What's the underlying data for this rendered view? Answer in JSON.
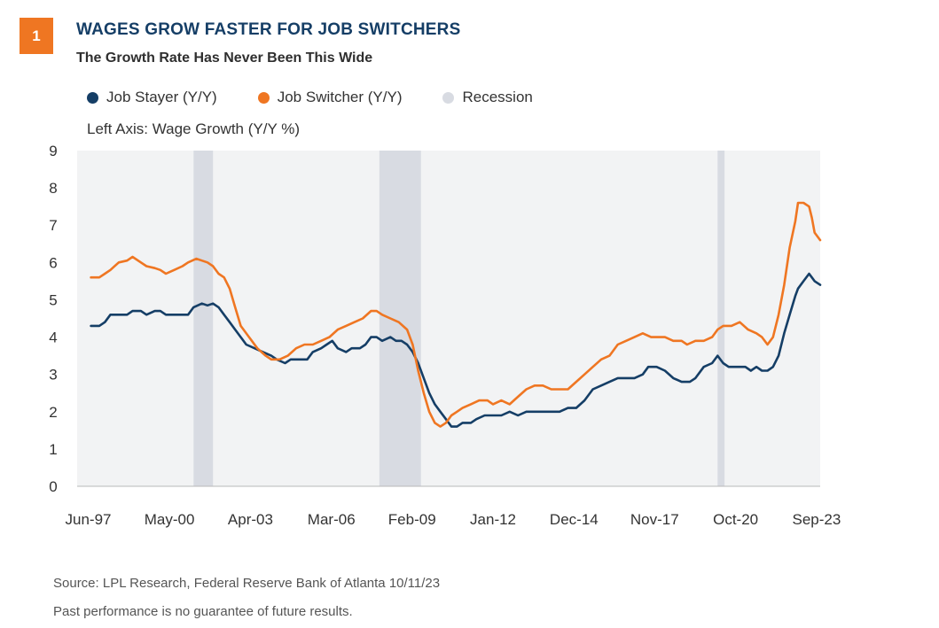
{
  "header": {
    "badge": "1",
    "title": "WAGES GROW FASTER FOR JOB SWITCHERS",
    "subtitle": "The Growth Rate Has Never Been This Wide"
  },
  "legend": {
    "stayer": "Job Stayer (Y/Y)",
    "switcher": "Job Switcher (Y/Y)",
    "recession": "Recession"
  },
  "axis_note": "Left Axis: Wage Growth (Y/Y %)",
  "footer": {
    "source": "Source: LPL Research, Federal Reserve Bank of Atlanta  10/11/23",
    "disclaimer": "Past performance is no guarantee of future results."
  },
  "colors": {
    "stayer": "#153e66",
    "switcher": "#ef7622",
    "recession": "#d8dbe2",
    "plot_bg": "#f2f3f4",
    "badge": "#ef7622",
    "title": "#153e66"
  },
  "chart_data": {
    "type": "line",
    "title": "WAGES GROW FASTER FOR JOB SWITCHERS",
    "subtitle": "The Growth Rate Has Never Been This Wide",
    "ylabel": "Left Axis: Wage Growth (Y/Y %)",
    "ylim": [
      0,
      9
    ],
    "xlim": [
      1997.0,
      2023.8
    ],
    "y_ticks": [
      0,
      1,
      2,
      3,
      4,
      5,
      6,
      7,
      8,
      9
    ],
    "x_ticks": [
      {
        "label": "Jun-97",
        "x": 1997.4
      },
      {
        "label": "May-00",
        "x": 2000.33
      },
      {
        "label": "Apr-03",
        "x": 2003.25
      },
      {
        "label": "Mar-06",
        "x": 2006.17
      },
      {
        "label": "Feb-09",
        "x": 2009.08
      },
      {
        "label": "Jan-12",
        "x": 2012.0
      },
      {
        "label": "Dec-14",
        "x": 2014.92
      },
      {
        "label": "Nov-17",
        "x": 2017.83
      },
      {
        "label": "Oct-20",
        "x": 2020.75
      },
      {
        "label": "Sep-23",
        "x": 2023.67
      }
    ],
    "grid": false,
    "legend_position": "top-left",
    "recessions": [
      {
        "start": 2001.2,
        "end": 2001.9
      },
      {
        "start": 2007.9,
        "end": 2009.4
      },
      {
        "start": 2020.1,
        "end": 2020.35
      }
    ],
    "series": [
      {
        "name": "Job Stayer (Y/Y)",
        "points": [
          [
            1997.5,
            4.3
          ],
          [
            1997.8,
            4.3
          ],
          [
            1998.0,
            4.4
          ],
          [
            1998.2,
            4.6
          ],
          [
            1998.5,
            4.6
          ],
          [
            1998.8,
            4.6
          ],
          [
            1999.0,
            4.7
          ],
          [
            1999.3,
            4.7
          ],
          [
            1999.5,
            4.6
          ],
          [
            1999.8,
            4.7
          ],
          [
            2000.0,
            4.7
          ],
          [
            2000.2,
            4.6
          ],
          [
            2000.5,
            4.6
          ],
          [
            2000.8,
            4.6
          ],
          [
            2001.0,
            4.6
          ],
          [
            2001.2,
            4.8
          ],
          [
            2001.5,
            4.9
          ],
          [
            2001.7,
            4.85
          ],
          [
            2001.9,
            4.9
          ],
          [
            2002.1,
            4.8
          ],
          [
            2002.3,
            4.6
          ],
          [
            2002.5,
            4.4
          ],
          [
            2002.7,
            4.2
          ],
          [
            2002.9,
            4.0
          ],
          [
            2003.1,
            3.8
          ],
          [
            2003.4,
            3.7
          ],
          [
            2003.7,
            3.6
          ],
          [
            2004.0,
            3.5
          ],
          [
            2004.2,
            3.4
          ],
          [
            2004.5,
            3.3
          ],
          [
            2004.7,
            3.4
          ],
          [
            2005.0,
            3.4
          ],
          [
            2005.3,
            3.4
          ],
          [
            2005.5,
            3.6
          ],
          [
            2005.8,
            3.7
          ],
          [
            2006.0,
            3.8
          ],
          [
            2006.2,
            3.9
          ],
          [
            2006.4,
            3.7
          ],
          [
            2006.7,
            3.6
          ],
          [
            2006.9,
            3.7
          ],
          [
            2007.2,
            3.7
          ],
          [
            2007.4,
            3.8
          ],
          [
            2007.6,
            4.0
          ],
          [
            2007.8,
            4.0
          ],
          [
            2008.0,
            3.9
          ],
          [
            2008.3,
            4.0
          ],
          [
            2008.5,
            3.9
          ],
          [
            2008.7,
            3.9
          ],
          [
            2008.9,
            3.8
          ],
          [
            2009.1,
            3.6
          ],
          [
            2009.3,
            3.3
          ],
          [
            2009.5,
            2.9
          ],
          [
            2009.7,
            2.5
          ],
          [
            2009.9,
            2.2
          ],
          [
            2010.1,
            2.0
          ],
          [
            2010.3,
            1.8
          ],
          [
            2010.5,
            1.6
          ],
          [
            2010.7,
            1.6
          ],
          [
            2010.9,
            1.7
          ],
          [
            2011.2,
            1.7
          ],
          [
            2011.4,
            1.8
          ],
          [
            2011.7,
            1.9
          ],
          [
            2012.0,
            1.9
          ],
          [
            2012.3,
            1.9
          ],
          [
            2012.6,
            2.0
          ],
          [
            2012.9,
            1.9
          ],
          [
            2013.2,
            2.0
          ],
          [
            2013.5,
            2.0
          ],
          [
            2013.8,
            2.0
          ],
          [
            2014.1,
            2.0
          ],
          [
            2014.4,
            2.0
          ],
          [
            2014.7,
            2.1
          ],
          [
            2015.0,
            2.1
          ],
          [
            2015.3,
            2.3
          ],
          [
            2015.6,
            2.6
          ],
          [
            2015.9,
            2.7
          ],
          [
            2016.2,
            2.8
          ],
          [
            2016.5,
            2.9
          ],
          [
            2016.8,
            2.9
          ],
          [
            2017.1,
            2.9
          ],
          [
            2017.4,
            3.0
          ],
          [
            2017.6,
            3.2
          ],
          [
            2017.9,
            3.2
          ],
          [
            2018.2,
            3.1
          ],
          [
            2018.5,
            2.9
          ],
          [
            2018.8,
            2.8
          ],
          [
            2019.1,
            2.8
          ],
          [
            2019.3,
            2.9
          ],
          [
            2019.6,
            3.2
          ],
          [
            2019.9,
            3.3
          ],
          [
            2020.1,
            3.5
          ],
          [
            2020.3,
            3.3
          ],
          [
            2020.5,
            3.2
          ],
          [
            2020.8,
            3.2
          ],
          [
            2021.1,
            3.2
          ],
          [
            2021.3,
            3.1
          ],
          [
            2021.5,
            3.2
          ],
          [
            2021.7,
            3.1
          ],
          [
            2021.9,
            3.1
          ],
          [
            2022.1,
            3.2
          ],
          [
            2022.3,
            3.5
          ],
          [
            2022.5,
            4.1
          ],
          [
            2022.7,
            4.6
          ],
          [
            2022.9,
            5.1
          ],
          [
            2023.0,
            5.3
          ],
          [
            2023.2,
            5.5
          ],
          [
            2023.4,
            5.7
          ],
          [
            2023.5,
            5.6
          ],
          [
            2023.6,
            5.5
          ],
          [
            2023.8,
            5.4
          ]
        ]
      },
      {
        "name": "Job Switcher (Y/Y)",
        "points": [
          [
            1997.5,
            5.6
          ],
          [
            1997.8,
            5.6
          ],
          [
            1998.0,
            5.7
          ],
          [
            1998.2,
            5.8
          ],
          [
            1998.5,
            6.0
          ],
          [
            1998.8,
            6.05
          ],
          [
            1999.0,
            6.15
          ],
          [
            1999.3,
            6.0
          ],
          [
            1999.5,
            5.9
          ],
          [
            1999.8,
            5.85
          ],
          [
            2000.0,
            5.8
          ],
          [
            2000.2,
            5.7
          ],
          [
            2000.5,
            5.8
          ],
          [
            2000.8,
            5.9
          ],
          [
            2001.0,
            6.0
          ],
          [
            2001.3,
            6.1
          ],
          [
            2001.5,
            6.05
          ],
          [
            2001.7,
            6.0
          ],
          [
            2001.9,
            5.9
          ],
          [
            2002.1,
            5.7
          ],
          [
            2002.3,
            5.6
          ],
          [
            2002.5,
            5.3
          ],
          [
            2002.7,
            4.8
          ],
          [
            2002.9,
            4.3
          ],
          [
            2003.2,
            4.0
          ],
          [
            2003.5,
            3.7
          ],
          [
            2003.8,
            3.5
          ],
          [
            2004.0,
            3.4
          ],
          [
            2004.3,
            3.4
          ],
          [
            2004.6,
            3.5
          ],
          [
            2004.9,
            3.7
          ],
          [
            2005.2,
            3.8
          ],
          [
            2005.5,
            3.8
          ],
          [
            2005.8,
            3.9
          ],
          [
            2006.1,
            4.0
          ],
          [
            2006.4,
            4.2
          ],
          [
            2006.7,
            4.3
          ],
          [
            2007.0,
            4.4
          ],
          [
            2007.3,
            4.5
          ],
          [
            2007.6,
            4.7
          ],
          [
            2007.8,
            4.7
          ],
          [
            2008.0,
            4.6
          ],
          [
            2008.3,
            4.5
          ],
          [
            2008.6,
            4.4
          ],
          [
            2008.9,
            4.2
          ],
          [
            2009.1,
            3.8
          ],
          [
            2009.3,
            3.1
          ],
          [
            2009.5,
            2.5
          ],
          [
            2009.7,
            2.0
          ],
          [
            2009.9,
            1.7
          ],
          [
            2010.1,
            1.6
          ],
          [
            2010.3,
            1.7
          ],
          [
            2010.5,
            1.9
          ],
          [
            2010.7,
            2.0
          ],
          [
            2010.9,
            2.1
          ],
          [
            2011.2,
            2.2
          ],
          [
            2011.5,
            2.3
          ],
          [
            2011.8,
            2.3
          ],
          [
            2012.0,
            2.2
          ],
          [
            2012.3,
            2.3
          ],
          [
            2012.6,
            2.2
          ],
          [
            2012.9,
            2.4
          ],
          [
            2013.2,
            2.6
          ],
          [
            2013.5,
            2.7
          ],
          [
            2013.8,
            2.7
          ],
          [
            2014.1,
            2.6
          ],
          [
            2014.4,
            2.6
          ],
          [
            2014.7,
            2.6
          ],
          [
            2015.0,
            2.8
          ],
          [
            2015.3,
            3.0
          ],
          [
            2015.6,
            3.2
          ],
          [
            2015.9,
            3.4
          ],
          [
            2016.2,
            3.5
          ],
          [
            2016.5,
            3.8
          ],
          [
            2016.8,
            3.9
          ],
          [
            2017.1,
            4.0
          ],
          [
            2017.4,
            4.1
          ],
          [
            2017.7,
            4.0
          ],
          [
            2017.9,
            4.0
          ],
          [
            2018.2,
            4.0
          ],
          [
            2018.5,
            3.9
          ],
          [
            2018.8,
            3.9
          ],
          [
            2019.0,
            3.8
          ],
          [
            2019.3,
            3.9
          ],
          [
            2019.6,
            3.9
          ],
          [
            2019.9,
            4.0
          ],
          [
            2020.1,
            4.2
          ],
          [
            2020.3,
            4.3
          ],
          [
            2020.6,
            4.3
          ],
          [
            2020.9,
            4.4
          ],
          [
            2021.2,
            4.2
          ],
          [
            2021.5,
            4.1
          ],
          [
            2021.7,
            4.0
          ],
          [
            2021.9,
            3.8
          ],
          [
            2022.1,
            4.0
          ],
          [
            2022.3,
            4.6
          ],
          [
            2022.5,
            5.4
          ],
          [
            2022.7,
            6.4
          ],
          [
            2022.9,
            7.1
          ],
          [
            2023.0,
            7.6
          ],
          [
            2023.2,
            7.6
          ],
          [
            2023.4,
            7.5
          ],
          [
            2023.5,
            7.2
          ],
          [
            2023.6,
            6.8
          ],
          [
            2023.8,
            6.6
          ]
        ]
      }
    ]
  }
}
